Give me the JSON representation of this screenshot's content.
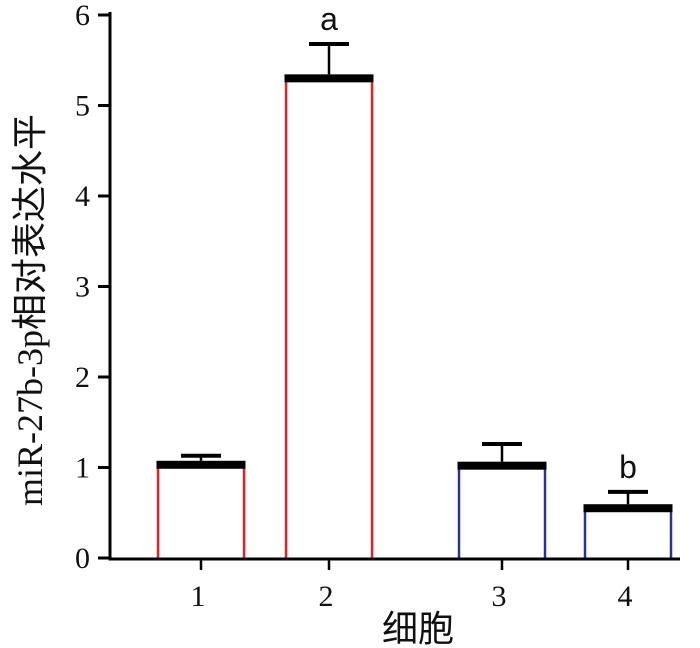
{
  "chart_data": {
    "type": "bar",
    "categories": [
      "1",
      "2",
      "3",
      "4"
    ],
    "values": [
      1.03,
      5.3,
      1.02,
      0.55
    ],
    "error_upper": [
      0.1,
      0.38,
      0.24,
      0.18
    ],
    "xlabel": "细胞",
    "ylabel": "miR-27b-3p相对表达水平",
    "ylim": [
      0,
      6
    ],
    "yticks": [
      0,
      1,
      2,
      3,
      4,
      5,
      6
    ],
    "grid": false,
    "legend": null,
    "annotations": [
      {
        "category_index": 1,
        "text": "a"
      },
      {
        "category_index": 3,
        "text": "b"
      }
    ],
    "bar_outline_colors": [
      "#d7262f",
      "#d7262f",
      "#2e3192",
      "#2e3192"
    ],
    "bar_fill_color": "#ffffff",
    "bar_top_color": "#000000"
  }
}
